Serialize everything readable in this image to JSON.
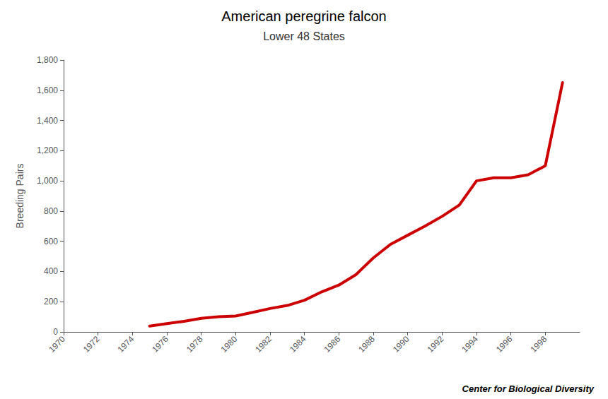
{
  "chart_data": {
    "type": "line",
    "title": "American peregrine falcon",
    "subtitle": "Lower 48 States",
    "ylabel": "Breeding Pairs",
    "annotations": [
      "Center for Biological Diversity"
    ],
    "color": "#cc0000",
    "x": [
      1975,
      1976,
      1977,
      1978,
      1979,
      1980,
      1981,
      1982,
      1983,
      1984,
      1985,
      1986,
      1987,
      1988,
      1989,
      1990,
      1991,
      1992,
      1993,
      1994,
      1995,
      1996,
      1997,
      1998,
      1999
    ],
    "values": [
      39,
      55,
      70,
      90,
      100,
      105,
      130,
      155,
      175,
      210,
      265,
      310,
      380,
      490,
      580,
      640,
      700,
      765,
      840,
      1000,
      1020,
      1020,
      1040,
      1100,
      1650
    ],
    "xlim": [
      1970,
      2000
    ],
    "xticks": [
      1970,
      1972,
      1974,
      1976,
      1978,
      1980,
      1982,
      1984,
      1986,
      1988,
      1990,
      1992,
      1994,
      1996,
      1998
    ],
    "ylim": [
      0,
      1800
    ],
    "yticks": [
      0,
      200,
      400,
      600,
      800,
      {
        "value": 1000,
        "label": "1,000"
      },
      {
        "value": 1200,
        "label": "1,200"
      },
      {
        "value": 1400,
        "label": "1,400"
      },
      {
        "value": 1600,
        "label": "1,600"
      },
      {
        "value": 1800,
        "label": "1,800"
      }
    ],
    "grid": false
  }
}
